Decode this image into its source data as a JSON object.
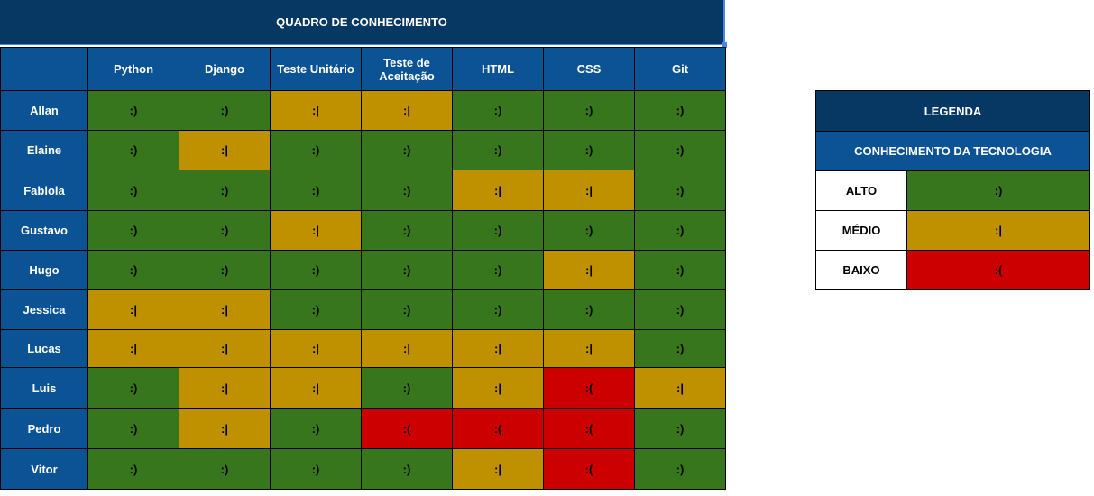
{
  "sheet": {
    "title": "QUADRO DE CONHECIMENTO",
    "columns": [
      "Python",
      "Django",
      "Teste Unitário",
      "Teste de Aceitação",
      "HTML",
      "CSS",
      "Git"
    ],
    "rows": [
      {
        "name": "Allan",
        "levels": [
          "alto",
          "alto",
          "medio",
          "medio",
          "alto",
          "alto",
          "alto"
        ]
      },
      {
        "name": "Elaine",
        "levels": [
          "alto",
          "medio",
          "alto",
          "alto",
          "alto",
          "alto",
          "alto"
        ]
      },
      {
        "name": "Fabiola",
        "levels": [
          "alto",
          "alto",
          "alto",
          "alto",
          "medio",
          "medio",
          "alto"
        ]
      },
      {
        "name": "Gustavo",
        "levels": [
          "alto",
          "alto",
          "medio",
          "alto",
          "alto",
          "alto",
          "alto"
        ]
      },
      {
        "name": "Hugo",
        "levels": [
          "alto",
          "alto",
          "alto",
          "alto",
          "alto",
          "medio",
          "alto"
        ]
      },
      {
        "name": "Jessica",
        "levels": [
          "medio",
          "medio",
          "alto",
          "alto",
          "alto",
          "alto",
          "alto"
        ]
      },
      {
        "name": "Lucas",
        "levels": [
          "medio",
          "medio",
          "medio",
          "medio",
          "medio",
          "medio",
          "alto"
        ]
      },
      {
        "name": "Luis",
        "levels": [
          "alto",
          "medio",
          "medio",
          "alto",
          "medio",
          "baixo",
          "medio"
        ]
      },
      {
        "name": "Pedro",
        "levels": [
          "alto",
          "medio",
          "alto",
          "baixo",
          "baixo",
          "baixo",
          "alto"
        ]
      },
      {
        "name": "Vitor",
        "levels": [
          "alto",
          "alto",
          "alto",
          "alto",
          "medio",
          "baixo",
          "alto"
        ]
      }
    ]
  },
  "levels": {
    "alto": {
      "label": "ALTO",
      "symbol": ":)",
      "color": "#38761d"
    },
    "medio": {
      "label": "MÉDIO",
      "symbol": ":|",
      "color": "#bf9000"
    },
    "baixo": {
      "label": "BAIXO",
      "symbol": ":(",
      "color": "#cc0000"
    }
  },
  "legend": {
    "title": "LEGENDA",
    "subtitle": "CONHECIMENTO DA TECNOLOGIA",
    "order": [
      "alto",
      "medio",
      "baixo"
    ]
  },
  "colors": {
    "title_bg": "#073763",
    "header_bg": "#0b5394",
    "selection": "#4a86e8"
  }
}
